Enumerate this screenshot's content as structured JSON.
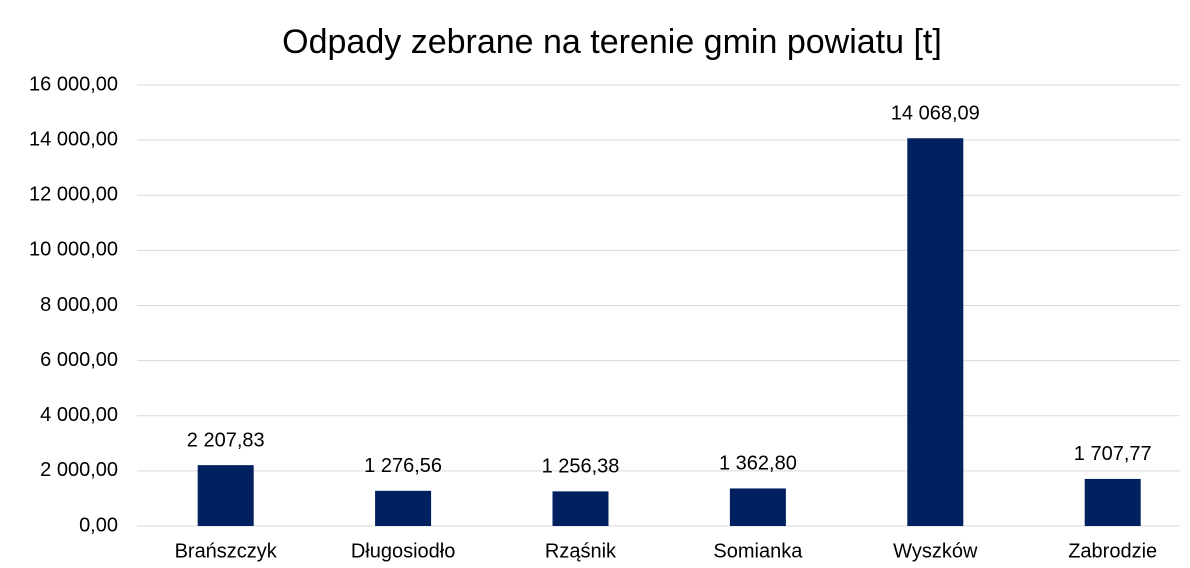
{
  "chart_data": {
    "type": "bar",
    "title": "Odpady zebrane na terenie gmin powiatu [t]",
    "categories": [
      "Brańszczyk",
      "Długosiodło",
      "Rząśnik",
      "Somianka",
      "Wyszków",
      "Zabrodzie"
    ],
    "values": [
      2207.83,
      1276.56,
      1256.38,
      1362.8,
      14068.09,
      1707.77
    ],
    "value_labels": [
      "2 207,83",
      "1 276,56",
      "1 256,38",
      "1 362,80",
      "14 068,09",
      "1 707,77"
    ],
    "color": "#002060",
    "ylim": [
      0,
      16000
    ],
    "yticks": [
      {
        "value": 0,
        "label": "0,00"
      },
      {
        "value": 2000,
        "label": "2 000,00"
      },
      {
        "value": 4000,
        "label": "4 000,00"
      },
      {
        "value": 6000,
        "label": "6 000,00"
      },
      {
        "value": 8000,
        "label": "8 000,00"
      },
      {
        "value": 10000,
        "label": "10 000,00"
      },
      {
        "value": 12000,
        "label": "12 000,00"
      },
      {
        "value": 14000,
        "label": "14 000,00"
      },
      {
        "value": 16000,
        "label": "16 000,00"
      }
    ],
    "grid": true
  }
}
